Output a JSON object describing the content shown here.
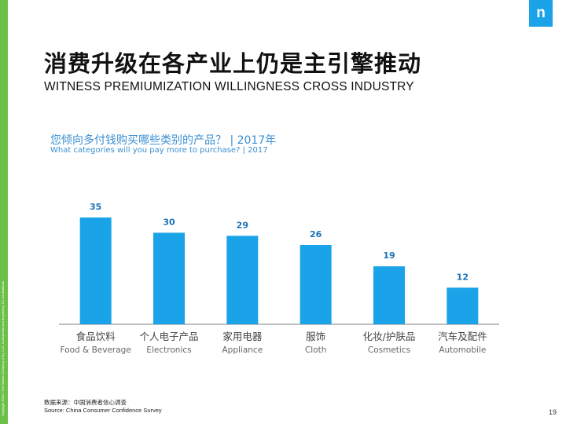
{
  "slide": {
    "side_note": "Copyright ©2017 The Nielsen Company (US), LLC. Confidential and proprietary. Do not distribute.",
    "logo": "n",
    "title_zh": "消费升级在各产业上仍是主引擎推动",
    "title_en": "WITNESS PREMIUMIZATION  WILLINGNESS  CROSS INDUSTRY",
    "question_zh": "您倾向多付钱购买哪些类别的产品？ | 2017年",
    "question_en": "What categories will you pay more to purchase? | 2017",
    "source_zh": "数据来源：中国消费者信心调查",
    "source_en": "Source:  China Consumer   Confidence  Survey",
    "page_number": "19"
  },
  "colors": {
    "bar": "#1aa3e8",
    "label": "#1a73b8",
    "axis": "#bfbfbf",
    "category": "#444444",
    "category_en": "#666666",
    "accent": "#6cc04a"
  },
  "chart_data": {
    "type": "bar",
    "title": "您倾向多付钱购买哪些类别的产品？ | 2017年",
    "categories": [
      "食品饮料",
      "个人电子产品",
      "家用电器",
      "服饰",
      "化妆/护肤品",
      "汽车及配件"
    ],
    "categories_en": [
      "Food & Beverage",
      "Electronics",
      "Appliance",
      "Cloth",
      "Cosmetics",
      "Automobile"
    ],
    "values": [
      35,
      30,
      29,
      26,
      19,
      12
    ],
    "ylim": [
      0,
      40
    ],
    "xlabel": "",
    "ylabel": "",
    "grid": false,
    "legend": "none"
  }
}
